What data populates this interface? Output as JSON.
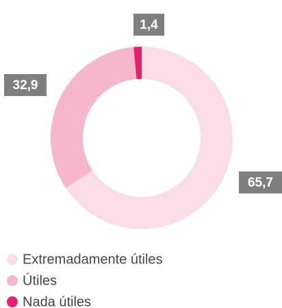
{
  "chart_data": {
    "type": "pie",
    "categories": [
      "Extremadamente útiles",
      "Útiles",
      "Nada útiles"
    ],
    "values": [
      65.7,
      32.9,
      1.4
    ],
    "value_labels": [
      "65,7",
      "32,9",
      "1,4"
    ],
    "colors": [
      "#fadde6",
      "#f5b8cb",
      "#e6206f"
    ],
    "legend": "bottom-left"
  }
}
